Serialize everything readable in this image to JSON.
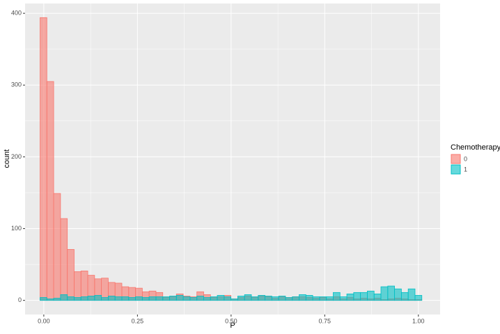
{
  "chart_data": {
    "type": "histogram",
    "x_label": "P",
    "y_label": "count",
    "legend_title": "Chemotherapy",
    "legend_position": "right",
    "bins": [
      -0.01,
      0.0082,
      0.0264,
      0.0446,
      0.0628,
      0.081,
      0.0992,
      0.1174,
      0.1356,
      0.1538,
      0.172,
      0.1902,
      0.2084,
      0.2266,
      0.2448,
      0.263,
      0.2812,
      0.2994,
      0.3176,
      0.3358,
      0.354,
      0.3722,
      0.3904,
      0.4086,
      0.4268,
      0.445,
      0.4632,
      0.4814,
      0.4996,
      0.5178,
      0.536,
      0.5542,
      0.5724,
      0.5906,
      0.6088,
      0.627,
      0.6452,
      0.6634,
      0.6816,
      0.6998,
      0.718,
      0.7362,
      0.7544,
      0.7726,
      0.7908,
      0.809,
      0.8272,
      0.8454,
      0.8636,
      0.8818,
      0.9,
      0.9182,
      0.9364,
      0.9546,
      0.9728,
      0.991,
      1.0092
    ],
    "series": [
      {
        "name": "0",
        "color": "#F8766D",
        "values": [
          394,
          305,
          149,
          114,
          71,
          40,
          41,
          35,
          30,
          31,
          25,
          24,
          19,
          18,
          17,
          12,
          13,
          11,
          4,
          5,
          9,
          6,
          5,
          12,
          8,
          4,
          5,
          7,
          2,
          4,
          6,
          4,
          6,
          5,
          3,
          5,
          4,
          5,
          5,
          4,
          3,
          4,
          2,
          5,
          2,
          4,
          2,
          3,
          2,
          3,
          1,
          2,
          3,
          2,
          1,
          1
        ]
      },
      {
        "name": "1",
        "color": "#00BFC4",
        "values": [
          4,
          2,
          3,
          8,
          5,
          4,
          5,
          6,
          7,
          4,
          6,
          5,
          5,
          4,
          5,
          4,
          5,
          5,
          5,
          6,
          7,
          5,
          4,
          6,
          4,
          5,
          7,
          5,
          2,
          6,
          8,
          5,
          7,
          6,
          5,
          6,
          4,
          5,
          8,
          7,
          5,
          5,
          5,
          11,
          5,
          9,
          11,
          11,
          13,
          9,
          19,
          20,
          16,
          11,
          16,
          7
        ]
      }
    ],
    "xlim": [
      -0.05,
      1.058
    ],
    "xticks": [
      {
        "value": 0,
        "label": "0.00"
      },
      {
        "value": 0.25,
        "label": "0.25"
      },
      {
        "value": 0.5,
        "label": "0.50"
      },
      {
        "value": 0.75,
        "label": "0.75"
      },
      {
        "value": 1,
        "label": "1.00"
      }
    ],
    "ylim": [
      -19.7,
      413.7
    ],
    "yticks": [
      0,
      100,
      200,
      300,
      400
    ],
    "grid": true,
    "fill_opacity": 0.6
  }
}
